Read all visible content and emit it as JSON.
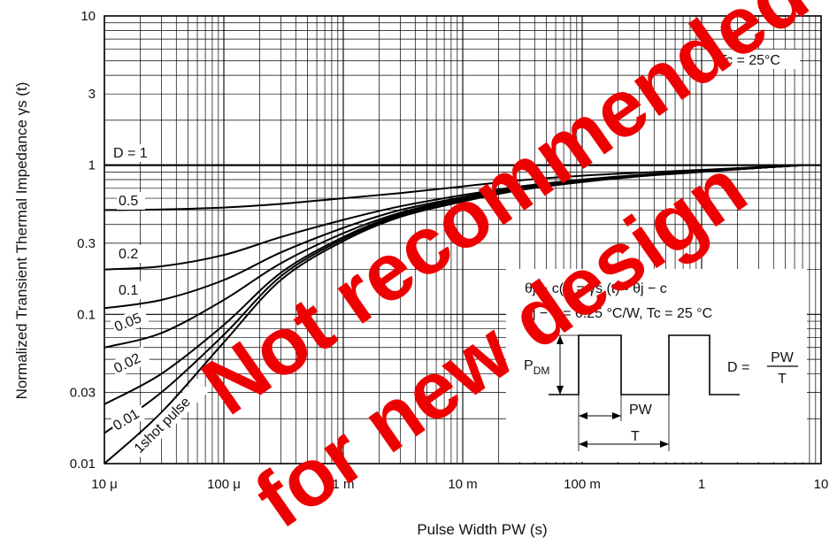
{
  "chart_data": {
    "type": "line",
    "xscale": "log",
    "yscale": "log",
    "xlim": [
      1e-05,
      10
    ],
    "ylim": [
      0.01,
      10
    ],
    "xlabel": "Pulse Width   PW  (s)",
    "ylabel": "Normalized Transient Thermal Impedance   γs  (t)",
    "x_ticks": [
      {
        "value": 1e-05,
        "label": "10 μ"
      },
      {
        "value": 0.0001,
        "label": "100 μ"
      },
      {
        "value": 0.001,
        "label": "1 m"
      },
      {
        "value": 0.01,
        "label": "10 m"
      },
      {
        "value": 0.1,
        "label": "100 m"
      },
      {
        "value": 1,
        "label": "1"
      },
      {
        "value": 10,
        "label": "10"
      }
    ],
    "y_ticks": [
      {
        "value": 0.01,
        "label": "0.01"
      },
      {
        "value": 0.03,
        "label": "0.03"
      },
      {
        "value": 0.1,
        "label": "0.1"
      },
      {
        "value": 0.3,
        "label": "0.3"
      },
      {
        "value": 1,
        "label": "1"
      },
      {
        "value": 3,
        "label": "3"
      },
      {
        "value": 10,
        "label": "10"
      }
    ],
    "grid": true,
    "series": [
      {
        "name": "D = 1",
        "x": [
          1e-05,
          10
        ],
        "y": [
          1,
          1
        ]
      },
      {
        "name": "0.5",
        "x": [
          1e-05,
          3e-05,
          0.0001,
          0.0003,
          0.001,
          0.003,
          0.01,
          0.03,
          0.1,
          0.3,
          1,
          3,
          7
        ],
        "y": [
          0.5,
          0.505,
          0.52,
          0.55,
          0.6,
          0.65,
          0.72,
          0.79,
          0.85,
          0.89,
          0.93,
          0.97,
          1
        ]
      },
      {
        "name": "0.2",
        "x": [
          1e-05,
          3e-05,
          0.0001,
          0.0003,
          0.001,
          0.003,
          0.01,
          0.03,
          0.1,
          0.3,
          1,
          3,
          7
        ],
        "y": [
          0.2,
          0.21,
          0.25,
          0.33,
          0.43,
          0.53,
          0.63,
          0.72,
          0.8,
          0.86,
          0.91,
          0.96,
          1
        ]
      },
      {
        "name": "0.1",
        "x": [
          1e-05,
          3e-05,
          0.0001,
          0.0003,
          0.001,
          0.003,
          0.01,
          0.03,
          0.1,
          0.3,
          1,
          3,
          7
        ],
        "y": [
          0.11,
          0.125,
          0.17,
          0.26,
          0.38,
          0.5,
          0.61,
          0.71,
          0.79,
          0.85,
          0.91,
          0.96,
          1
        ]
      },
      {
        "name": "0.05",
        "x": [
          1e-05,
          3e-05,
          0.0001,
          0.0003,
          0.001,
          0.003,
          0.01,
          0.03,
          0.1,
          0.3,
          1,
          3,
          7
        ],
        "y": [
          0.06,
          0.075,
          0.125,
          0.22,
          0.35,
          0.48,
          0.6,
          0.7,
          0.78,
          0.85,
          0.91,
          0.96,
          1
        ]
      },
      {
        "name": "0.02",
        "x": [
          1e-05,
          3e-05,
          0.0001,
          0.0003,
          0.001,
          0.003,
          0.01,
          0.03,
          0.1,
          0.3,
          1,
          3,
          7
        ],
        "y": [
          0.025,
          0.04,
          0.085,
          0.19,
          0.33,
          0.47,
          0.59,
          0.69,
          0.78,
          0.85,
          0.91,
          0.96,
          1
        ]
      },
      {
        "name": "0.01",
        "x": [
          1e-05,
          3e-05,
          0.0001,
          0.0003,
          0.001,
          0.003,
          0.01,
          0.03,
          0.1,
          0.3,
          1,
          3,
          7
        ],
        "y": [
          0.016,
          0.03,
          0.073,
          0.18,
          0.32,
          0.46,
          0.58,
          0.69,
          0.78,
          0.85,
          0.91,
          0.96,
          1
        ]
      },
      {
        "name": "1shot pulse",
        "x": [
          1e-05,
          3e-05,
          0.0001,
          0.0003,
          0.001,
          0.003,
          0.01,
          0.03,
          0.1,
          0.3,
          1,
          3,
          7
        ],
        "y": [
          0.01,
          0.022,
          0.065,
          0.17,
          0.31,
          0.45,
          0.57,
          0.68,
          0.77,
          0.84,
          0.9,
          0.96,
          1
        ]
      }
    ],
    "annotations": {
      "tc": "Tc = 25°C",
      "formula1": "θj − c(t) = γs (t) • θj − c",
      "formula2": "θj − c = 6.25 °C/W, Tc = 25 °C",
      "pdm_main": "P",
      "pdm_sub": "DM",
      "duty_lhs": "D =",
      "duty_num": "PW",
      "duty_den": "T",
      "pw_label": "PW",
      "t_label": "T"
    },
    "watermark": {
      "line1": "Not recommended",
      "line2": "for new design",
      "color": "#ee0000"
    }
  }
}
